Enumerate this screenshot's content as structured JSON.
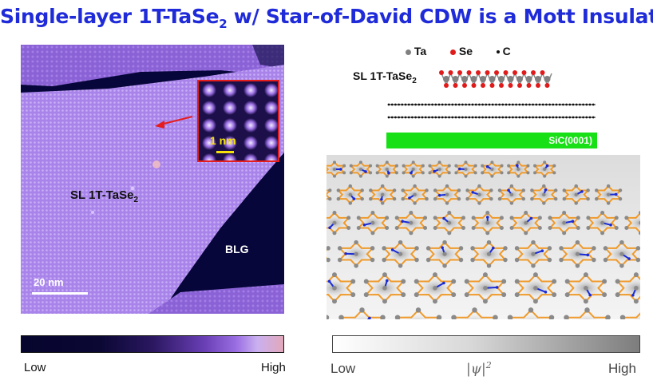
{
  "title": {
    "pre": "Single-layer 1T-TaSe",
    "sub": "2",
    "post": " w/ Star-of-David CDW is a Mott Insulator"
  },
  "stm_image": {
    "sample_label": "SL 1T-TaSe",
    "sample_label_sub": "2",
    "substrate_label": "BLG",
    "scalebar_label": "20 nm",
    "inset_scalebar_label": "1 nm"
  },
  "left_colorbar": {
    "low": "Low",
    "high": "High"
  },
  "structure": {
    "legend": [
      {
        "label": "Ta",
        "color": "#808080"
      },
      {
        "label": "Se",
        "color": "#e01b1b"
      },
      {
        "label": "C",
        "color": "#111111"
      }
    ],
    "layer_label": "SL 1T-TaSe",
    "layer_label_sub": "2",
    "substrate": "SiC(0001)"
  },
  "right_colorbar": {
    "low": "Low",
    "mid": "|ψ|",
    "mid_sup": "2",
    "high": "High"
  }
}
